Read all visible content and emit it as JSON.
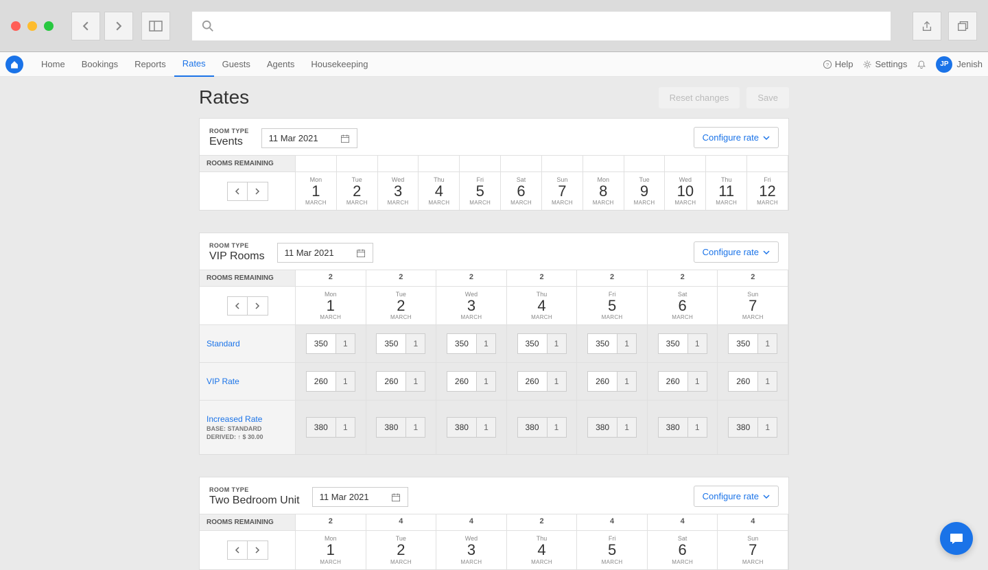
{
  "colors": {
    "red": "#ff5f57",
    "yellow": "#febc2e",
    "green": "#28c840",
    "accent": "#1a73e8",
    "chrome_bg": "#dcdcdc",
    "page_bg": "#eaeaea"
  },
  "nav": {
    "items": [
      "Home",
      "Bookings",
      "Reports",
      "Rates",
      "Guests",
      "Agents",
      "Housekeeping"
    ],
    "active_index": 3,
    "help": "Help",
    "settings": "Settings",
    "user_name": "Jenish",
    "user_initials": "JP"
  },
  "page": {
    "title": "Rates",
    "reset_label": "Reset changes",
    "save_label": "Save",
    "configure_label": "Configure rate",
    "rooms_remaining_label": "ROOMS REMAINING",
    "room_type_label": "ROOM TYPE",
    "month_label": "MARCH"
  },
  "sections": [
    {
      "name": "Events",
      "date": "11 Mar 2021",
      "day_count": 12,
      "dows": [
        "Mon",
        "Tue",
        "Wed",
        "Thu",
        "Fri",
        "Sat",
        "Sun",
        "Mon",
        "Tue",
        "Wed",
        "Thu",
        "Fri"
      ],
      "nums": [
        "1",
        "2",
        "3",
        "4",
        "5",
        "6",
        "7",
        "8",
        "9",
        "10",
        "11",
        "12"
      ],
      "remaining": [
        "",
        "",
        "",
        "",
        "",
        "",
        "",
        "",
        "",
        "",
        "",
        ""
      ],
      "rates": []
    },
    {
      "name": "VIP Rooms",
      "date": "11 Mar 2021",
      "day_count": 7,
      "dows": [
        "Mon",
        "Tue",
        "Wed",
        "Thu",
        "Fri",
        "Sat",
        "Sun"
      ],
      "nums": [
        "1",
        "2",
        "3",
        "4",
        "5",
        "6",
        "7"
      ],
      "remaining": [
        "2",
        "2",
        "2",
        "2",
        "2",
        "2",
        "2"
      ],
      "rates": [
        {
          "label": "Standard",
          "base": "",
          "derived": "",
          "values": [
            "350",
            "350",
            "350",
            "350",
            "350",
            "350",
            "350"
          ],
          "los": [
            "1",
            "1",
            "1",
            "1",
            "1",
            "1",
            "1"
          ],
          "derived_style": false
        },
        {
          "label": "VIP Rate",
          "base": "",
          "derived": "",
          "values": [
            "260",
            "260",
            "260",
            "260",
            "260",
            "260",
            "260"
          ],
          "los": [
            "1",
            "1",
            "1",
            "1",
            "1",
            "1",
            "1"
          ],
          "derived_style": false
        },
        {
          "label": "Increased Rate",
          "base": "BASE: STANDARD",
          "derived": "DERIVED: ↑ $ 30.00",
          "values": [
            "380",
            "380",
            "380",
            "380",
            "380",
            "380",
            "380"
          ],
          "los": [
            "1",
            "1",
            "1",
            "1",
            "1",
            "1",
            "1"
          ],
          "derived_style": true
        }
      ]
    },
    {
      "name": "Two Bedroom Unit",
      "date": "11 Mar 2021",
      "day_count": 7,
      "dows": [
        "Mon",
        "Tue",
        "Wed",
        "Thu",
        "Fri",
        "Sat",
        "Sun"
      ],
      "nums": [
        "1",
        "2",
        "3",
        "4",
        "5",
        "6",
        "7"
      ],
      "remaining": [
        "2",
        "4",
        "4",
        "2",
        "4",
        "4",
        "4"
      ],
      "rates": []
    }
  ]
}
